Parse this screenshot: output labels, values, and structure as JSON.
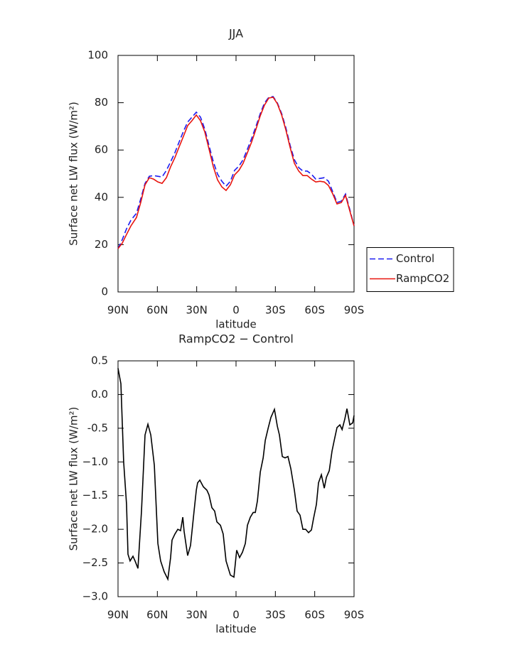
{
  "chart_data": [
    {
      "type": "line",
      "title": "JJA",
      "x_label": "latitude",
      "y_label": "Surface net LW flux (W/m²)",
      "xlim": [
        90,
        -90
      ],
      "xticks": [
        {
          "value": 90,
          "label": "90N"
        },
        {
          "value": 60,
          "label": "60N"
        },
        {
          "value": 30,
          "label": "30N"
        },
        0,
        {
          "value": -30,
          "label": "30S"
        },
        {
          "value": -60,
          "label": "60S"
        },
        {
          "value": -90,
          "label": "90S"
        }
      ],
      "ylim": [
        0,
        100
      ],
      "yticks": [
        0,
        20,
        40,
        60,
        80,
        100
      ],
      "grid": false,
      "legend": "right",
      "x": [
        90,
        86.7,
        83.5,
        80.2,
        75.9,
        72.7,
        69.4,
        66.1,
        62.9,
        59.6,
        56.4,
        53.1,
        49.9,
        46.6,
        43.4,
        40.1,
        36.9,
        33.6,
        30.3,
        27.1,
        23.8,
        20.6,
        17.3,
        14.1,
        10.8,
        7.6,
        4.3,
        1.1,
        -2.2,
        -5.4,
        -8.7,
        -11.9,
        -15.2,
        -18.5,
        -21.7,
        -25,
        -28.3,
        -31.5,
        -34.8,
        -38,
        -41.3,
        -44.5,
        -47.8,
        -51,
        -54.3,
        -57.5,
        -60.8,
        -64,
        -67.3,
        -70.5,
        -73.8,
        -77,
        -80.3,
        -83.5,
        -86.8,
        -90
      ],
      "series": [
        {
          "name": "Control",
          "color": "#1c1cf0",
          "line_style": "dashed",
          "values": [
            18.3,
            22.2,
            26.7,
            30.3,
            33.3,
            39.3,
            45.9,
            48.9,
            49.2,
            48.9,
            48.6,
            51.4,
            55,
            58.9,
            63.4,
            67.9,
            71.8,
            73.9,
            76,
            73.9,
            68.8,
            61.9,
            55,
            49.8,
            46.8,
            44.7,
            46.8,
            51.4,
            53.2,
            55.9,
            60.4,
            64.9,
            70,
            75.4,
            79.9,
            82.3,
            82.6,
            79.9,
            75.4,
            69.4,
            61.9,
            55.9,
            52.6,
            51.1,
            51.1,
            49.8,
            47.7,
            48,
            48.3,
            46.8,
            42.3,
            37.8,
            38.4,
            41.4,
            34.8,
            27.9
          ]
        },
        {
          "name": "RampCO2",
          "color": "#e8140e",
          "line_style": "solid",
          "values": [
            18.3,
            20.7,
            24.3,
            27.9,
            31.5,
            37.8,
            45.3,
            48.3,
            47.7,
            46.5,
            45.9,
            48.3,
            52.9,
            56.8,
            61.3,
            65.8,
            70.3,
            72.4,
            74.8,
            72.4,
            67.6,
            60.4,
            52.9,
            47.4,
            44.4,
            42.9,
            45.3,
            49.5,
            51.4,
            54.4,
            58.9,
            63.4,
            68.8,
            74.5,
            79,
            82,
            82.3,
            79.6,
            74.8,
            68.5,
            61,
            54.4,
            51.1,
            49.2,
            49.2,
            47.7,
            46.5,
            46.8,
            46.5,
            45,
            41.4,
            37.2,
            37.8,
            40.8,
            34.2,
            27.9
          ]
        }
      ]
    },
    {
      "type": "line",
      "title": "RampCO2 − Control",
      "x_label": "latitude",
      "y_label": "Surface net LW flux (W/m²)",
      "xlim": [
        90,
        -90
      ],
      "xticks": [
        {
          "value": 90,
          "label": "90N"
        },
        {
          "value": 60,
          "label": "60N"
        },
        {
          "value": 30,
          "label": "30N"
        },
        0,
        {
          "value": -30,
          "label": "30S"
        },
        {
          "value": -60,
          "label": "60S"
        },
        {
          "value": -90,
          "label": "90S"
        }
      ],
      "ylim": [
        -3,
        0.5
      ],
      "yticks": [
        0.5,
        {
          "value": 0,
          "label": "0.0"
        },
        -0.5,
        {
          "value": -1,
          "label": "−1.0"
        },
        {
          "value": -1.5,
          "label": "−1.5"
        },
        {
          "value": -2,
          "label": "−2.0"
        },
        {
          "value": -2.5,
          "label": "−2.5"
        },
        {
          "value": -3,
          "label": "−3.0"
        }
      ],
      "grid": false,
      "x": [
        90,
        87.8,
        85.7,
        83.5,
        82.4,
        80.8,
        78.6,
        77,
        74.8,
        72.1,
        69.4,
        67.2,
        65,
        62.3,
        59.6,
        57.5,
        54.8,
        52,
        49.9,
        48.8,
        46.6,
        44.4,
        42.3,
        40.6,
        39.6,
        36.9,
        34.7,
        32,
        30.3,
        29.3,
        27.6,
        24.9,
        22.2,
        20.6,
        18.4,
        16.3,
        14.6,
        11.9,
        9.8,
        7.6,
        4.3,
        1.6,
        -0.5,
        -2.7,
        -4.9,
        -7.1,
        -8.7,
        -10.9,
        -13.1,
        -14.7,
        -16.3,
        -18.5,
        -20.7,
        -22.3,
        -24.5,
        -26.6,
        -29.3,
        -31.5,
        -33.1,
        -35.3,
        -37.4,
        -39.6,
        -41.8,
        -44.5,
        -46.6,
        -48.8,
        -51,
        -53.1,
        -55.3,
        -57.5,
        -59.1,
        -61.3,
        -62.9,
        -65.1,
        -67.3,
        -68.9,
        -71.1,
        -73.2,
        -74.9,
        -77,
        -79.2,
        -80.9,
        -83,
        -84.6,
        -86.8,
        -89,
        -90
      ],
      "series": [
        {
          "name": "RampCO2 − Control",
          "color": "#000000",
          "line_style": "solid",
          "values": [
            0.39,
            0.16,
            -1.0,
            -1.63,
            -2.37,
            -2.47,
            -2.4,
            -2.47,
            -2.58,
            -1.73,
            -0.6,
            -0.44,
            -0.6,
            -1.05,
            -2.21,
            -2.47,
            -2.63,
            -2.74,
            -2.42,
            -2.16,
            -2.07,
            -2.0,
            -2.02,
            -1.82,
            -2.03,
            -2.39,
            -2.24,
            -1.73,
            -1.42,
            -1.31,
            -1.27,
            -1.37,
            -1.42,
            -1.49,
            -1.68,
            -1.73,
            -1.89,
            -1.94,
            -2.07,
            -2.47,
            -2.68,
            -2.71,
            -2.31,
            -2.42,
            -2.34,
            -2.21,
            -1.94,
            -1.82,
            -1.75,
            -1.75,
            -1.58,
            -1.15,
            -0.94,
            -0.68,
            -0.5,
            -0.34,
            -0.22,
            -0.47,
            -0.6,
            -0.92,
            -0.94,
            -0.92,
            -1.1,
            -1.42,
            -1.73,
            -1.79,
            -2.0,
            -2.0,
            -2.05,
            -2.01,
            -1.84,
            -1.63,
            -1.31,
            -1.19,
            -1.39,
            -1.23,
            -1.13,
            -0.84,
            -0.68,
            -0.49,
            -0.45,
            -0.52,
            -0.36,
            -0.21,
            -0.45,
            -0.42,
            -0.31
          ]
        }
      ]
    }
  ]
}
